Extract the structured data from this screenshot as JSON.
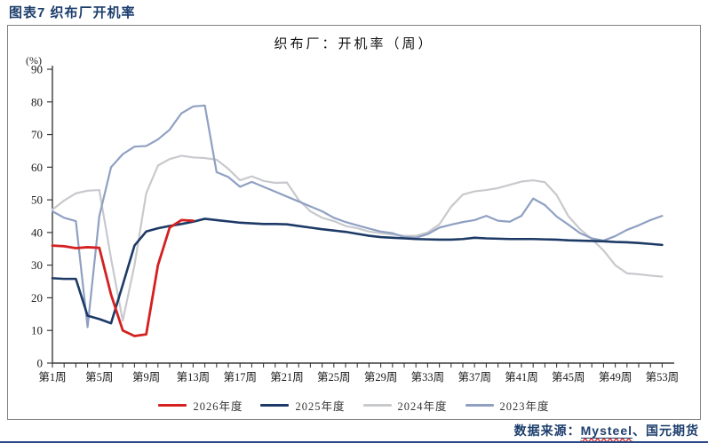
{
  "page": {
    "header_title": "图表7 织布厂开机率",
    "source": {
      "prefix": "数据来源：",
      "vendor": "Mysteel",
      "suffix": "、国元期货"
    }
  },
  "chart_data": {
    "type": "line",
    "title": "织布厂：开机率（周）",
    "unit_label": "(%)",
    "xlabel": "",
    "ylabel": "开机率(%)",
    "ylim": [
      0,
      90
    ],
    "y_ticks": [
      0,
      10,
      20,
      30,
      40,
      50,
      60,
      70,
      80,
      90
    ],
    "weeks_total": 53,
    "x_tick_weeks": [
      1,
      5,
      9,
      13,
      17,
      21,
      25,
      29,
      33,
      37,
      41,
      45,
      49,
      53
    ],
    "x_tick_labels": [
      "第1周",
      "第5周",
      "第9周",
      "第13周",
      "第17周",
      "第21周",
      "第25周",
      "第29周",
      "第33周",
      "第37周",
      "第41周",
      "第45周",
      "第49周",
      "第53周"
    ],
    "grid": false,
    "legend_position": "bottom",
    "series": [
      {
        "name": "2026年度",
        "color": "#d42020",
        "values": [
          36,
          35.8,
          35.2,
          35.5,
          35.3,
          21,
          10,
          8.3,
          8.8,
          30,
          41.5,
          43.8,
          43.6
        ]
      },
      {
        "name": "2025年度",
        "color": "#1d3a66",
        "values": [
          26,
          25.8,
          25.8,
          14.5,
          13.5,
          12.2,
          24,
          36,
          40.3,
          41.3,
          42,
          42.6,
          43.3,
          44.2,
          43.8,
          43.4,
          43,
          42.8,
          42.6,
          42.6,
          42.5,
          42,
          41.5,
          41,
          40.6,
          40.2,
          39.6,
          39,
          38.6,
          38.4,
          38.2,
          38,
          37.9,
          37.8,
          37.8,
          38,
          38.4,
          38.2,
          38.1,
          38,
          38,
          38,
          37.9,
          37.8,
          37.6,
          37.5,
          37.4,
          37.3,
          37.1,
          37,
          36.8,
          36.5,
          36.2
        ]
      },
      {
        "name": "2024年度",
        "color": "#c8c9cd",
        "values": [
          47,
          49.8,
          52,
          52.8,
          53,
          32,
          13,
          30,
          52,
          60.5,
          62.5,
          63.5,
          63,
          62.8,
          62.3,
          59.5,
          56,
          57.2,
          55.8,
          55.2,
          55.3,
          50,
          46.5,
          44.5,
          43.5,
          42,
          41.3,
          40.3,
          39.8,
          39.4,
          39,
          39,
          40,
          42.5,
          47.9,
          51.6,
          52.6,
          53,
          53.6,
          54.6,
          55.6,
          56,
          55.4,
          51.5,
          45,
          41,
          38,
          34.5,
          30,
          27.5,
          27.2,
          26.8,
          26.5
        ]
      },
      {
        "name": "2023年度",
        "color": "#8fa0c2",
        "values": [
          46.5,
          44.5,
          43.5,
          11,
          45,
          60,
          64,
          66.3,
          66.5,
          68.5,
          71.5,
          76.5,
          78.6,
          78.9,
          58.5,
          57,
          54,
          55.5,
          54,
          52.5,
          51,
          49.5,
          48,
          46.5,
          44.5,
          43.2,
          42.2,
          41.2,
          40.3,
          39.8,
          38.6,
          38.4,
          39.5,
          41.5,
          42.4,
          43.2,
          43.8,
          45.1,
          43.6,
          43.3,
          45.1,
          50.4,
          48.4,
          44.9,
          42.4,
          39.8,
          38.2,
          37.5,
          38.9,
          40.8,
          42.2,
          43.8,
          45.1
        ]
      }
    ]
  }
}
